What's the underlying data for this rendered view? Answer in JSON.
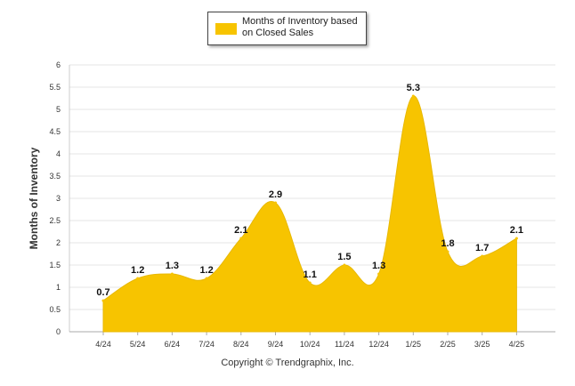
{
  "legend": {
    "label": "Months of Inventory based on Closed Sales"
  },
  "footer": {
    "copyright": "Copyright © Trendgraphix, Inc."
  },
  "chart_data": {
    "type": "area",
    "categories": [
      "4/24",
      "5/24",
      "6/24",
      "7/24",
      "8/24",
      "9/24",
      "10/24",
      "11/24",
      "12/24",
      "1/25",
      "2/25",
      "3/25",
      "4/25"
    ],
    "series": [
      {
        "name": "Months of Inventory based on Closed Sales",
        "values": [
          0.7,
          1.2,
          1.3,
          1.2,
          2.1,
          2.9,
          1.1,
          1.5,
          1.3,
          5.3,
          1.8,
          1.7,
          2.1
        ],
        "color": "#f7c400"
      }
    ],
    "ylabel": "Months of Inventory",
    "ylim": [
      0,
      6
    ],
    "yticks": [
      "0",
      "0.5",
      "1",
      "1.5",
      "2",
      "2.5",
      "3",
      "3.5",
      "4",
      "4.5",
      "5",
      "5.5",
      "6"
    ],
    "grid": true,
    "legend_position": "top-center"
  }
}
